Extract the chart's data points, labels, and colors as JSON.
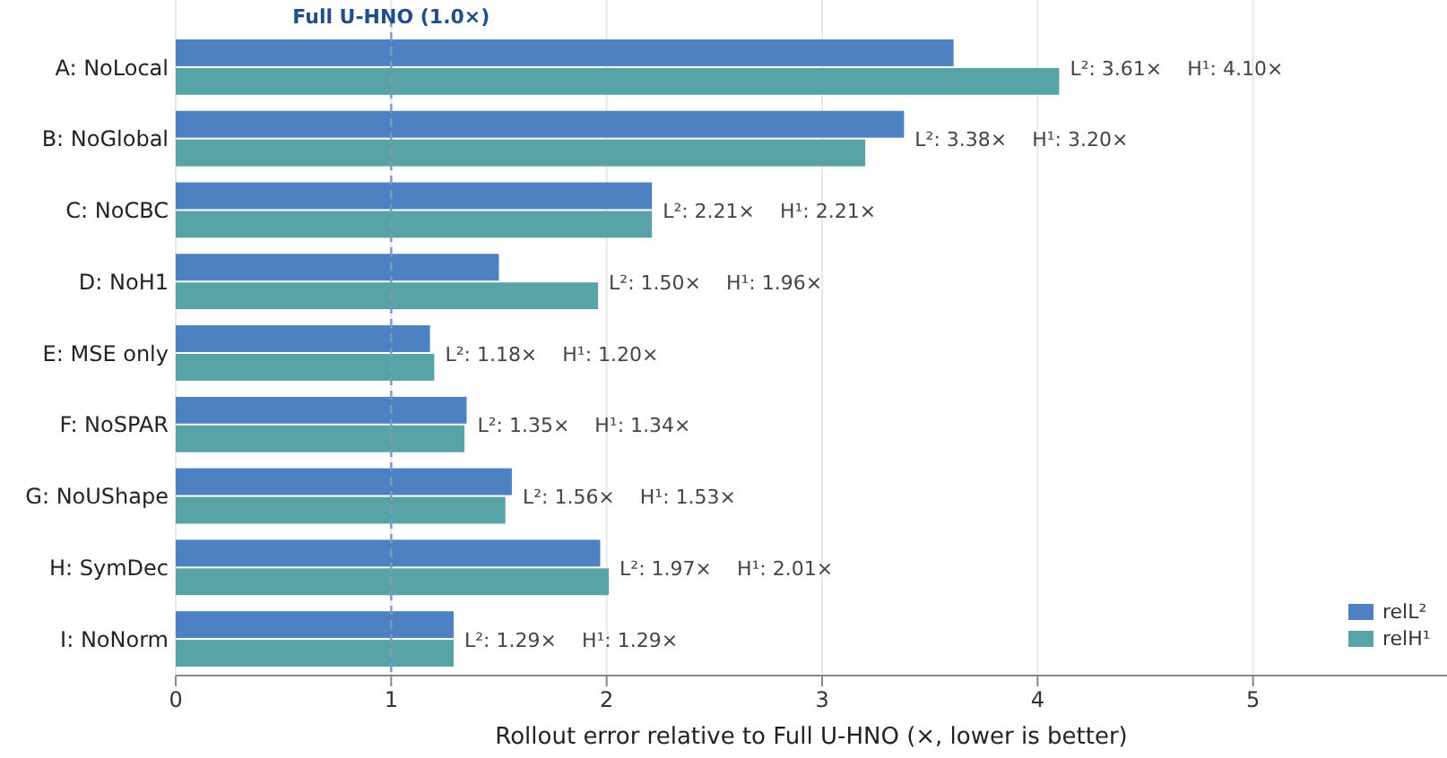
{
  "chart_data": {
    "type": "bar",
    "orientation": "horizontal",
    "xlabel": "Rollout error relative to Full U-HNO (×, lower is better)",
    "categories": [
      "A: NoLocal",
      "B: NoGlobal",
      "C: NoCBC",
      "D: NoH1",
      "E: MSE only",
      "F: NoSPAR",
      "G: NoUShape",
      "H: SymDec",
      "I: NoNorm"
    ],
    "series": [
      {
        "name": "relL²",
        "color": "#4e81c2",
        "values": [
          3.61,
          3.38,
          2.21,
          1.5,
          1.18,
          1.35,
          1.56,
          1.97,
          1.29
        ]
      },
      {
        "name": "relH¹",
        "color": "#58a3a6",
        "values": [
          4.1,
          3.2,
          2.21,
          1.96,
          1.2,
          1.34,
          1.53,
          2.01,
          1.29
        ]
      }
    ],
    "annotations": [
      {
        "text": "L²: 3.61×    H¹: 4.10×",
        "x": 4.1,
        "y": "A: NoLocal"
      },
      {
        "text": "L²: 3.38×    H¹: 3.20×",
        "x": 3.38,
        "y": "B: NoGlobal"
      },
      {
        "text": "L²: 2.21×    H¹: 2.21×",
        "x": 2.21,
        "y": "C: NoCBC"
      },
      {
        "text": "L²: 1.50×    H¹: 1.96×",
        "x": 1.96,
        "y": "D: NoH1"
      },
      {
        "text": "L²: 1.18×    H¹: 1.20×",
        "x": 1.2,
        "y": "E: MSE only"
      },
      {
        "text": "L²: 1.35×    H¹: 1.34×",
        "x": 1.35,
        "y": "F: NoSPAR"
      },
      {
        "text": "L²: 1.56×    H¹: 1.53×",
        "x": 1.56,
        "y": "G: NoUShape"
      },
      {
        "text": "L²: 1.97×    H¹: 2.01×",
        "x": 2.01,
        "y": "H: SymDec"
      },
      {
        "text": "L²: 1.29×    H¹: 1.29×",
        "x": 1.29,
        "y": "I: NoNorm"
      }
    ],
    "xlim": [
      0,
      5.9
    ],
    "xticks": [
      0,
      1,
      2,
      3,
      4,
      5
    ],
    "grid": "x",
    "legend": "bottom right",
    "ref_lines": [
      {
        "axis": "x",
        "value": 1,
        "label": "Full U-HNO (1.0×)",
        "color": "#7a9cc0",
        "line_style": "dashed"
      }
    ]
  }
}
